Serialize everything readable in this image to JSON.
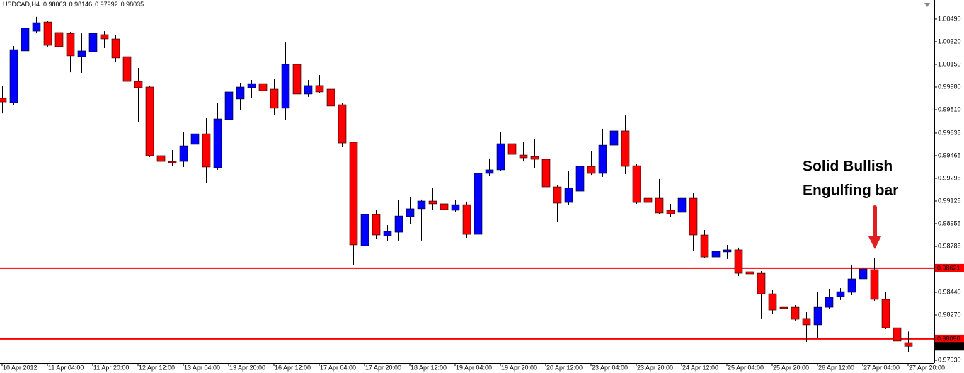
{
  "chart_data": {
    "type": "candlestick",
    "title": "USDCAD,H4",
    "annotation": [
      "Solid Bullish",
      "Engulfing bar"
    ],
    "up_color": "#0000ff",
    "down_color": "#ff0000",
    "hline_color": "#ff0000",
    "categories": [
      "10 Apr 2012",
      null,
      null,
      null,
      "11 Apr 04:00",
      null,
      null,
      null,
      "11 Apr 20:00",
      null,
      null,
      null,
      "12 Apr 12:00",
      null,
      null,
      null,
      "13 Apr 04:00",
      null,
      null,
      null,
      "13 Apr 20:00",
      null,
      null,
      null,
      "16 Apr 12:00",
      null,
      null,
      null,
      "17 Apr 04:00",
      null,
      null,
      null,
      "17 Apr 20:00",
      null,
      null,
      null,
      "18 Apr 12:00",
      null,
      null,
      null,
      "19 Apr 04:00",
      null,
      null,
      null,
      "19 Apr 20:00",
      null,
      null,
      null,
      "20 Apr 12:00",
      null,
      null,
      null,
      "23 Apr 04:00",
      null,
      null,
      null,
      "23 Apr 20:00",
      null,
      null,
      null,
      "24 Apr 12:00",
      null,
      null,
      null,
      "25 Apr 04:00",
      null,
      null,
      null,
      "25 Apr 20:00",
      null,
      null,
      null,
      "26 Apr 12:00",
      null,
      null,
      null,
      "27 Apr 04:00",
      null,
      null,
      null,
      "27 Apr 20:00"
    ],
    "open": [
      0.99895,
      0.99863,
      1.00251,
      1.00399,
      1.00468,
      1.00389,
      1.00383,
      1.00208,
      1.00245,
      1.00373,
      1.00341,
      1.00208,
      1.00022,
      0.9998,
      0.99465,
      0.99422,
      0.99422,
      0.9955,
      0.99629,
      0.99375,
      0.99736,
      0.9989,
      0.99975,
      1.00006,
      0.99964,
      0.99821,
      1.0015,
      0.99927,
      0.99991,
      0.99964,
      0.99847,
      0.99566,
      0.9879,
      0.99024,
      0.98865,
      0.98891,
      0.99008,
      0.99067,
      0.99125,
      0.99104,
      0.99056,
      0.99098,
      0.98875,
      0.99332,
      0.99359,
      0.99555,
      0.9947,
      0.99459,
      0.99438,
      0.99231,
      0.99114,
      0.99199,
      0.99385,
      0.99332,
      0.99544,
      0.99651,
      0.9939,
      0.99146,
      0.99146,
      0.99056,
      0.9904,
      0.99146,
      0.9887,
      0.98705,
      0.98743,
      0.98759,
      0.98594,
      0.98583,
      0.98429,
      0.98328,
      0.98328,
      0.98244,
      0.98196,
      0.98328,
      0.98408,
      0.9844,
      0.98541,
      0.9861,
      0.98387,
      0.98174,
      0.98063
    ],
    "high": [
      0.99985,
      1.00288,
      1.00437,
      1.00506,
      1.00474,
      1.00421,
      1.00394,
      1.00383,
      1.00484,
      1.00399,
      1.00368,
      1.00219,
      1.00123,
      0.99991,
      0.99582,
      0.99507,
      0.9964,
      0.99661,
      0.99746,
      0.99863,
      0.99953,
      1.00012,
      1.00033,
      1.00102,
      1.00038,
      1.00314,
      1.00182,
      1.00033,
      1.0007,
      1.00113,
      0.99858,
      0.99571,
      0.99077,
      0.99061,
      0.98944,
      0.9913,
      0.99157,
      0.99136,
      0.99226,
      0.99157,
      0.9913,
      0.9912,
      0.99369,
      0.99444,
      0.99645,
      0.99582,
      0.99571,
      0.99592,
      0.99449,
      0.99242,
      0.99353,
      0.99396,
      0.99502,
      0.99667,
      0.99783,
      0.99767,
      0.99401,
      0.99199,
      0.9929,
      0.99104,
      0.99189,
      0.99183,
      0.98907,
      0.98785,
      0.98796,
      0.98775,
      0.98737,
      0.98599,
      0.98456,
      0.98371,
      0.98344,
      0.98291,
      0.98445,
      0.98461,
      0.98472,
      0.98642,
      0.98642,
      0.987,
      0.98445,
      0.98244,
      0.98146
    ],
    "low": [
      0.99783,
      0.99847,
      1.00219,
      1.00383,
      1.00283,
      1.00129,
      1.00091,
      1.00086,
      1.00208,
      1.00272,
      1.00171,
      0.99879,
      0.9972,
      0.99454,
      0.99396,
      0.99385,
      0.9938,
      0.99502,
      0.99263,
      0.99359,
      0.9972,
      0.9981,
      0.999,
      0.99943,
      0.99773,
      0.9973,
      0.99906,
      0.99906,
      0.99932,
      0.99752,
      0.99529,
      0.98647,
      0.98775,
      0.98838,
      0.98822,
      0.98828,
      0.98955,
      0.98828,
      0.99061,
      0.9904,
      0.9904,
      0.98849,
      0.98801,
      0.99311,
      0.99348,
      0.99422,
      0.99422,
      0.99369,
      0.99051,
      0.98971,
      0.99098,
      0.99189,
      0.99321,
      0.99306,
      0.99518,
      0.99327,
      0.99104,
      0.9904,
      0.99024,
      0.99003,
      0.99024,
      0.98753,
      0.987,
      0.98668,
      0.9869,
      0.98562,
      0.98546,
      0.98244,
      0.98281,
      0.98302,
      0.98228,
      0.98068,
      0.981,
      0.98313,
      0.98382,
      0.98419,
      0.9852,
      0.98376,
      0.98164,
      0.98036,
      0.97992
    ],
    "close": [
      0.99868,
      1.00261,
      1.00421,
      1.00463,
      1.00293,
      1.00283,
      1.00214,
      1.00251,
      1.00383,
      1.00341,
      1.00198,
      1.00022,
      0.99975,
      0.99465,
      0.99422,
      0.99412,
      0.99539,
      0.99629,
      0.9938,
      0.99741,
      0.99943,
      0.9998,
      1.00006,
      0.99953,
      0.99821,
      1.0015,
      0.99927,
      0.99991,
      0.99943,
      0.99837,
      0.9956,
      0.98796,
      0.99024,
      0.9887,
      0.98897,
      0.99013,
      0.99067,
      0.99125,
      0.99104,
      0.99061,
      0.99098,
      0.98875,
      0.99332,
      0.99359,
      0.99555,
      0.99475,
      0.99449,
      0.99438,
      0.99231,
      0.99109,
      0.99221,
      0.99385,
      0.99332,
      0.99544,
      0.99651,
      0.99385,
      0.99114,
      0.99114,
      0.99035,
      0.99029,
      0.99146,
      0.9887,
      0.98705,
      0.98748,
      0.98759,
      0.98583,
      0.98578,
      0.98429,
      0.98307,
      0.98318,
      0.98238,
      0.98196,
      0.98328,
      0.98403,
      0.98445,
      0.98541,
      0.98615,
      0.98387,
      0.98174,
      0.98074,
      0.98035
    ],
    "ylim": [
      0.97909,
      1.00633
    ],
    "yticks": [
      {
        "value": 1.0049,
        "label": "1.00490"
      },
      {
        "value": 1.0032,
        "label": "1.00320"
      },
      {
        "value": 1.0015,
        "label": "1.00150"
      },
      {
        "value": 0.9998,
        "label": "0.99980"
      },
      {
        "value": 0.9981,
        "label": "0.99810"
      },
      0.99635,
      0.99465,
      0.99295,
      0.99125,
      0.98955,
      0.98785,
      {
        "value": 0.9844,
        "label": "0.98440"
      },
      {
        "value": 0.9827,
        "label": "0.98270"
      },
      {
        "value": 0.9793,
        "label": "0.97930"
      }
    ],
    "hlines": [
      0.98621,
      {
        "value": 0.9809,
        "label": "0.98090"
      }
    ]
  }
}
